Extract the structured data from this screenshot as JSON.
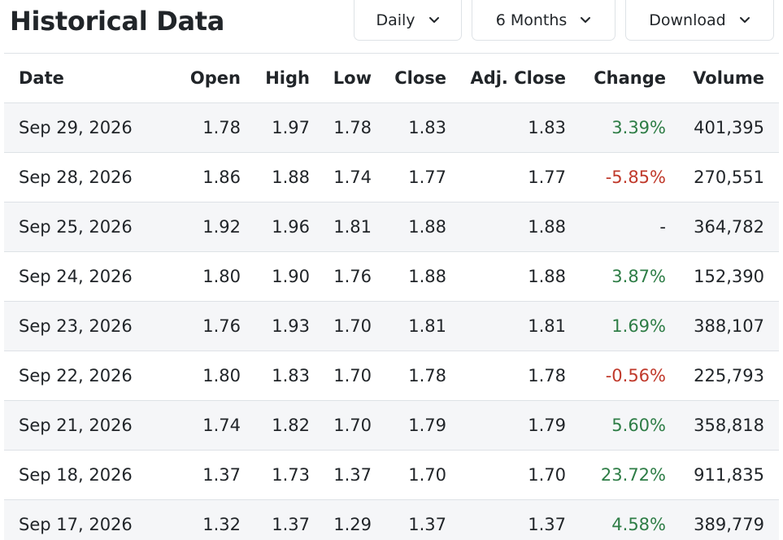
{
  "header": {
    "title": "Historical Data",
    "frequency_label": "Daily",
    "range_label": "6 Months",
    "download_label": "Download"
  },
  "table": {
    "columns": [
      "Date",
      "Open",
      "High",
      "Low",
      "Close",
      "Adj. Close",
      "Change",
      "Volume"
    ],
    "rows": [
      {
        "date": "Sep 29, 2026",
        "open": "1.78",
        "high": "1.97",
        "low": "1.78",
        "close": "1.83",
        "adj_close": "1.83",
        "change": "3.39%",
        "change_dir": "pos",
        "volume": "401,395"
      },
      {
        "date": "Sep 28, 2026",
        "open": "1.86",
        "high": "1.88",
        "low": "1.74",
        "close": "1.77",
        "adj_close": "1.77",
        "change": "-5.85%",
        "change_dir": "neg",
        "volume": "270,551"
      },
      {
        "date": "Sep 25, 2026",
        "open": "1.92",
        "high": "1.96",
        "low": "1.81",
        "close": "1.88",
        "adj_close": "1.88",
        "change": "-",
        "change_dir": "flat",
        "volume": "364,782"
      },
      {
        "date": "Sep 24, 2026",
        "open": "1.80",
        "high": "1.90",
        "low": "1.76",
        "close": "1.88",
        "adj_close": "1.88",
        "change": "3.87%",
        "change_dir": "pos",
        "volume": "152,390"
      },
      {
        "date": "Sep 23, 2026",
        "open": "1.76",
        "high": "1.93",
        "low": "1.70",
        "close": "1.81",
        "adj_close": "1.81",
        "change": "1.69%",
        "change_dir": "pos",
        "volume": "388,107"
      },
      {
        "date": "Sep 22, 2026",
        "open": "1.80",
        "high": "1.83",
        "low": "1.70",
        "close": "1.78",
        "adj_close": "1.78",
        "change": "-0.56%",
        "change_dir": "neg",
        "volume": "225,793"
      },
      {
        "date": "Sep 21, 2026",
        "open": "1.74",
        "high": "1.82",
        "low": "1.70",
        "close": "1.79",
        "adj_close": "1.79",
        "change": "5.60%",
        "change_dir": "pos",
        "volume": "358,818"
      },
      {
        "date": "Sep 18, 2026",
        "open": "1.37",
        "high": "1.73",
        "low": "1.37",
        "close": "1.70",
        "adj_close": "1.70",
        "change": "23.72%",
        "change_dir": "pos",
        "volume": "911,835"
      },
      {
        "date": "Sep 17, 2026",
        "open": "1.32",
        "high": "1.37",
        "low": "1.29",
        "close": "1.37",
        "adj_close": "1.37",
        "change": "4.58%",
        "change_dir": "pos",
        "volume": "389,779"
      }
    ]
  },
  "colors": {
    "positive": "#2e7d46",
    "negative": "#c0392b",
    "stripe": "#f5f6f8",
    "border": "#dee2e6"
  },
  "icons": {
    "dropdown": "chevron-down-icon"
  }
}
